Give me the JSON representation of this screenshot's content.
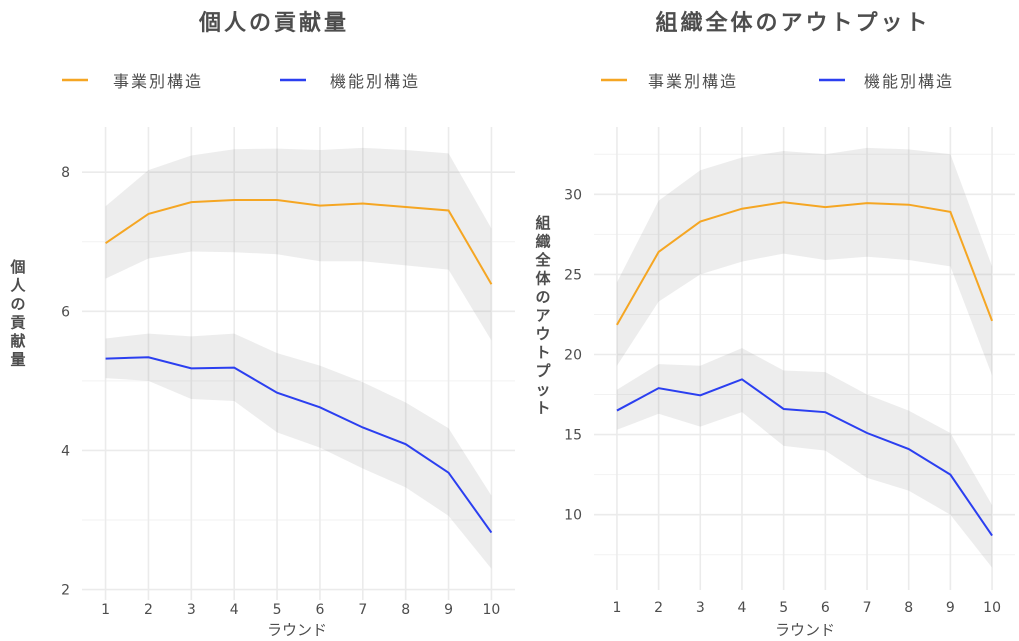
{
  "chart_data": [
    {
      "type": "line",
      "title": "個人の貢献量",
      "xlabel": "ラウンド",
      "ylabel": "個人の貢献量",
      "x": [
        1,
        2,
        3,
        4,
        5,
        6,
        7,
        8,
        9,
        10
      ],
      "xticks": [
        "1",
        "2",
        "3",
        "4",
        "5",
        "6",
        "7",
        "8",
        "9",
        "10"
      ],
      "yticks": [
        2,
        4,
        6,
        8
      ],
      "ytick_labels": [
        "2",
        "4",
        "6",
        "8"
      ],
      "yminor": [
        3,
        5,
        7
      ],
      "ylim": [
        1.85,
        8.65
      ],
      "xlim": [
        0.45,
        10.55
      ],
      "grid": true,
      "legend_position": "top",
      "series": [
        {
          "name": "事業別構造",
          "color": "#F5A623",
          "values": [
            6.98,
            7.4,
            7.57,
            7.6,
            7.6,
            7.52,
            7.55,
            7.5,
            7.45,
            6.39
          ],
          "upper": [
            7.51,
            8.03,
            8.24,
            8.33,
            8.34,
            8.32,
            8.35,
            8.32,
            8.27,
            7.19
          ],
          "lower": [
            6.47,
            6.76,
            6.86,
            6.85,
            6.82,
            6.72,
            6.72,
            6.66,
            6.6,
            5.58
          ]
        },
        {
          "name": "機能別構造",
          "color": "#2B3FF0",
          "values": [
            5.32,
            5.34,
            5.18,
            5.19,
            4.83,
            4.62,
            4.33,
            4.09,
            3.68,
            2.82
          ],
          "upper": [
            5.61,
            5.68,
            5.64,
            5.68,
            5.4,
            5.22,
            4.98,
            4.69,
            4.32,
            3.35
          ],
          "lower": [
            5.04,
            5.0,
            4.74,
            4.71,
            4.26,
            4.04,
            3.74,
            3.47,
            3.06,
            2.3
          ]
        }
      ]
    },
    {
      "type": "line",
      "title": "組織全体のアウトプット",
      "xlabel": "ラウンド",
      "ylabel": "組織全体のアウトプット",
      "x": [
        1,
        2,
        3,
        4,
        5,
        6,
        7,
        8,
        9,
        10
      ],
      "xticks": [
        "1",
        "2",
        "3",
        "4",
        "5",
        "6",
        "7",
        "8",
        "9",
        "10"
      ],
      "yticks": [
        10,
        15,
        20,
        25,
        30
      ],
      "ytick_labels": [
        "10",
        "15",
        "20",
        "25",
        "30"
      ],
      "yminor": [
        7.5,
        12.5,
        17.5,
        22.5,
        27.5,
        32.5
      ],
      "ylim": [
        5.3,
        34.2
      ],
      "xlim": [
        0.45,
        10.55
      ],
      "grid": true,
      "legend_position": "top",
      "series": [
        {
          "name": "事業別構造",
          "color": "#F5A623",
          "values": [
            21.85,
            26.4,
            28.3,
            29.1,
            29.5,
            29.2,
            29.45,
            29.35,
            28.9,
            22.1
          ],
          "upper": [
            24.5,
            29.6,
            31.5,
            32.3,
            32.7,
            32.5,
            32.9,
            32.8,
            32.5,
            25.5
          ],
          "lower": [
            19.3,
            23.3,
            25.0,
            25.8,
            26.3,
            25.9,
            26.1,
            25.9,
            25.5,
            18.7
          ]
        },
        {
          "name": "機能別構造",
          "color": "#2B3FF0",
          "values": [
            16.5,
            17.9,
            17.45,
            18.45,
            16.6,
            16.4,
            15.1,
            14.1,
            12.5,
            8.7
          ],
          "upper": [
            17.8,
            19.4,
            19.3,
            20.4,
            19.0,
            18.9,
            17.5,
            16.5,
            15.1,
            10.6
          ],
          "lower": [
            15.3,
            16.3,
            15.5,
            16.4,
            14.3,
            14.0,
            12.3,
            11.5,
            10.0,
            6.7
          ]
        }
      ]
    }
  ]
}
